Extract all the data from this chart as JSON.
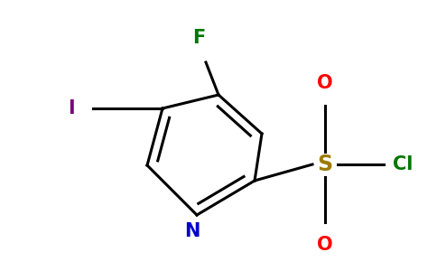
{
  "background_color": "#ffffff",
  "figsize": [
    4.84,
    3.0
  ],
  "dpi": 100,
  "lw": 2.2,
  "colors": {
    "bond": "#000000",
    "N": "#0000cc",
    "F": "#007700",
    "I": "#7b007b",
    "S": "#9b7b00",
    "Cl": "#007700",
    "O": "#ff0000"
  }
}
